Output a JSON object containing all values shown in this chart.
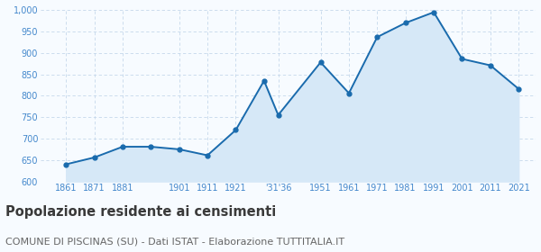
{
  "years": [
    1861,
    1871,
    1881,
    1891,
    1901,
    1911,
    1921,
    1931,
    1936,
    1951,
    1961,
    1971,
    1981,
    1991,
    2001,
    2011,
    2021
  ],
  "population": [
    640,
    656,
    681,
    681,
    675,
    661,
    720,
    835,
    755,
    878,
    806,
    937,
    970,
    995,
    886,
    871,
    816
  ],
  "ylim": [
    600,
    1000
  ],
  "yticks": [
    600,
    650,
    700,
    750,
    800,
    850,
    900,
    950,
    1000
  ],
  "ytick_labels": [
    "600",
    "650",
    "700",
    "750",
    "800",
    "850",
    "900",
    "950",
    "1,000"
  ],
  "display_tick_years": [
    1861,
    1871,
    1881,
    1901,
    1911,
    1921,
    1936,
    1951,
    1961,
    1971,
    1981,
    1991,
    2001,
    2011,
    2021
  ],
  "display_tick_labels": [
    "1861",
    "1871",
    "1881",
    "1901",
    "1911",
    "1921",
    "'31'36",
    "1951",
    "1961",
    "1971",
    "1981",
    "1991",
    "2001",
    "2011",
    "2021"
  ],
  "xlim": [
    1852,
    2027
  ],
  "line_color": "#1a6bad",
  "fill_color": "#d6e8f7",
  "marker_color": "#1a6bad",
  "bg_color": "#f7fbff",
  "grid_color": "#c5d8eb",
  "title": "Popolazione residente ai censimenti",
  "subtitle": "COMUNE DI PISCINAS (SU) - Dati ISTAT - Elaborazione TUTTITALIA.IT",
  "title_color": "#3a3a3a",
  "subtitle_color": "#666666",
  "tick_label_color": "#4488cc",
  "title_fontsize": 10.5,
  "subtitle_fontsize": 8.0
}
